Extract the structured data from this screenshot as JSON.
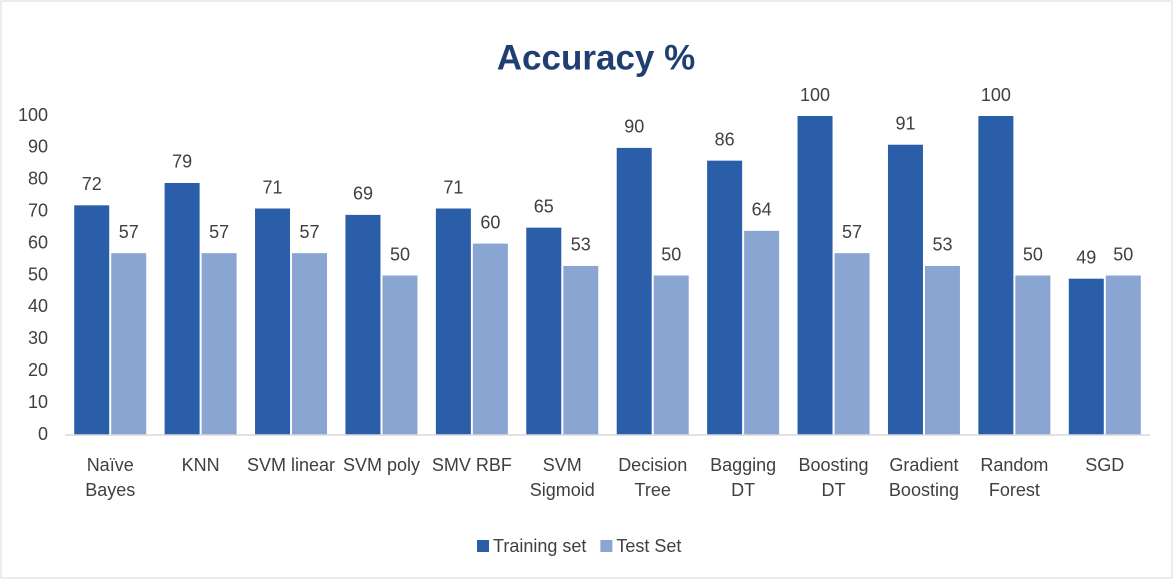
{
  "chart_data": {
    "type": "bar",
    "title": "Accuracy %",
    "categories": [
      "Naïve Bayes",
      "KNN",
      "SVM linear",
      "SVM poly",
      "SMV RBF",
      "SVM Sigmoid",
      "Decision Tree",
      "Bagging DT",
      "Boosting DT",
      "Gradient Boosting",
      "Random Forest",
      "SGD"
    ],
    "series": [
      {
        "name": "Training set",
        "color": "#2a5ea8",
        "values": [
          72,
          79,
          71,
          69,
          71,
          65,
          90,
          86,
          100,
          91,
          100,
          49
        ]
      },
      {
        "name": "Test Set",
        "color": "#8ba5d3",
        "values": [
          57,
          57,
          57,
          50,
          60,
          53,
          50,
          64,
          57,
          53,
          50,
          50
        ]
      }
    ],
    "ylim": [
      0,
      100
    ],
    "yticks": [
      0,
      10,
      20,
      30,
      40,
      50,
      60,
      70,
      80,
      90,
      100
    ],
    "grid": false,
    "legend": "bottom"
  }
}
